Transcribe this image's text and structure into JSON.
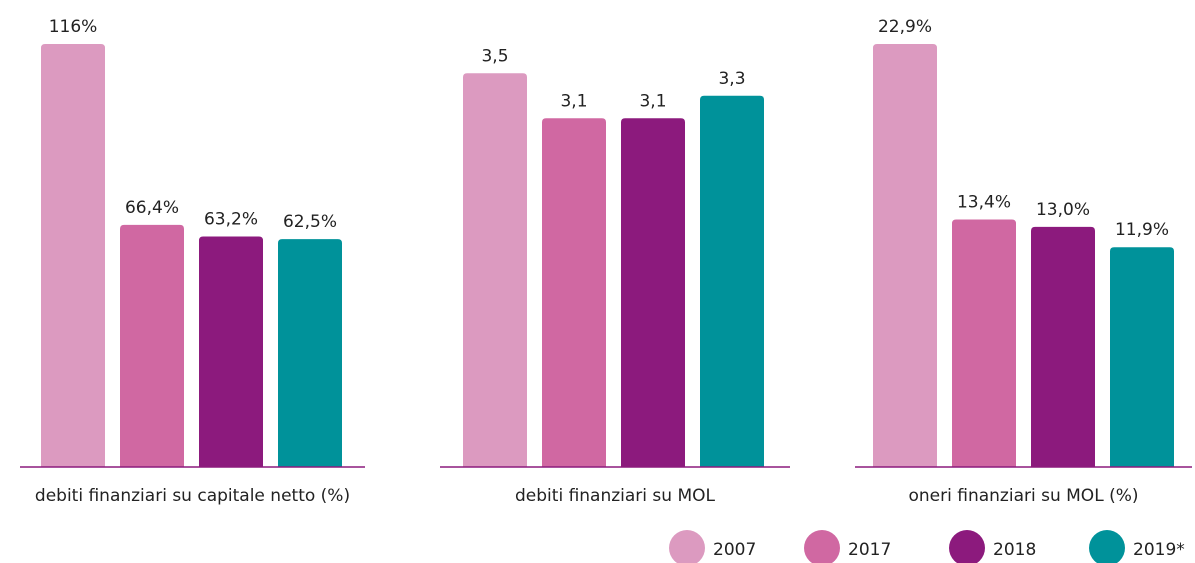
{
  "legend": {
    "names": [
      "2007",
      "2017",
      "2018",
      "2019*"
    ],
    "colors": [
      "#dc9ac0",
      "#d068a2",
      "#8c1a7d",
      "#00929a"
    ]
  },
  "chart_data": [
    {
      "type": "bar",
      "xlabel": "debiti finanziari su capitale netto (%)",
      "values": [
        116,
        66.4,
        63.2,
        62.5
      ],
      "value_labels": [
        "116%",
        "66,4%",
        "63,2%",
        "62,5%"
      ],
      "ylim": [
        0,
        116
      ]
    },
    {
      "type": "bar",
      "xlabel": "debiti finanziari su MOL",
      "values": [
        3.5,
        3.1,
        3.1,
        3.3
      ],
      "value_labels": [
        "3,5",
        "3,1",
        "3,1",
        "3,3"
      ],
      "ylim": [
        0,
        3.76
      ]
    },
    {
      "type": "bar",
      "xlabel": "oneri finanziari su MOL (%)",
      "values": [
        22.9,
        13.4,
        13.0,
        11.9
      ],
      "value_labels": [
        "22,9%",
        "13,4%",
        "13,0%",
        "11,9%"
      ],
      "ylim": [
        0,
        22.9
      ]
    }
  ]
}
